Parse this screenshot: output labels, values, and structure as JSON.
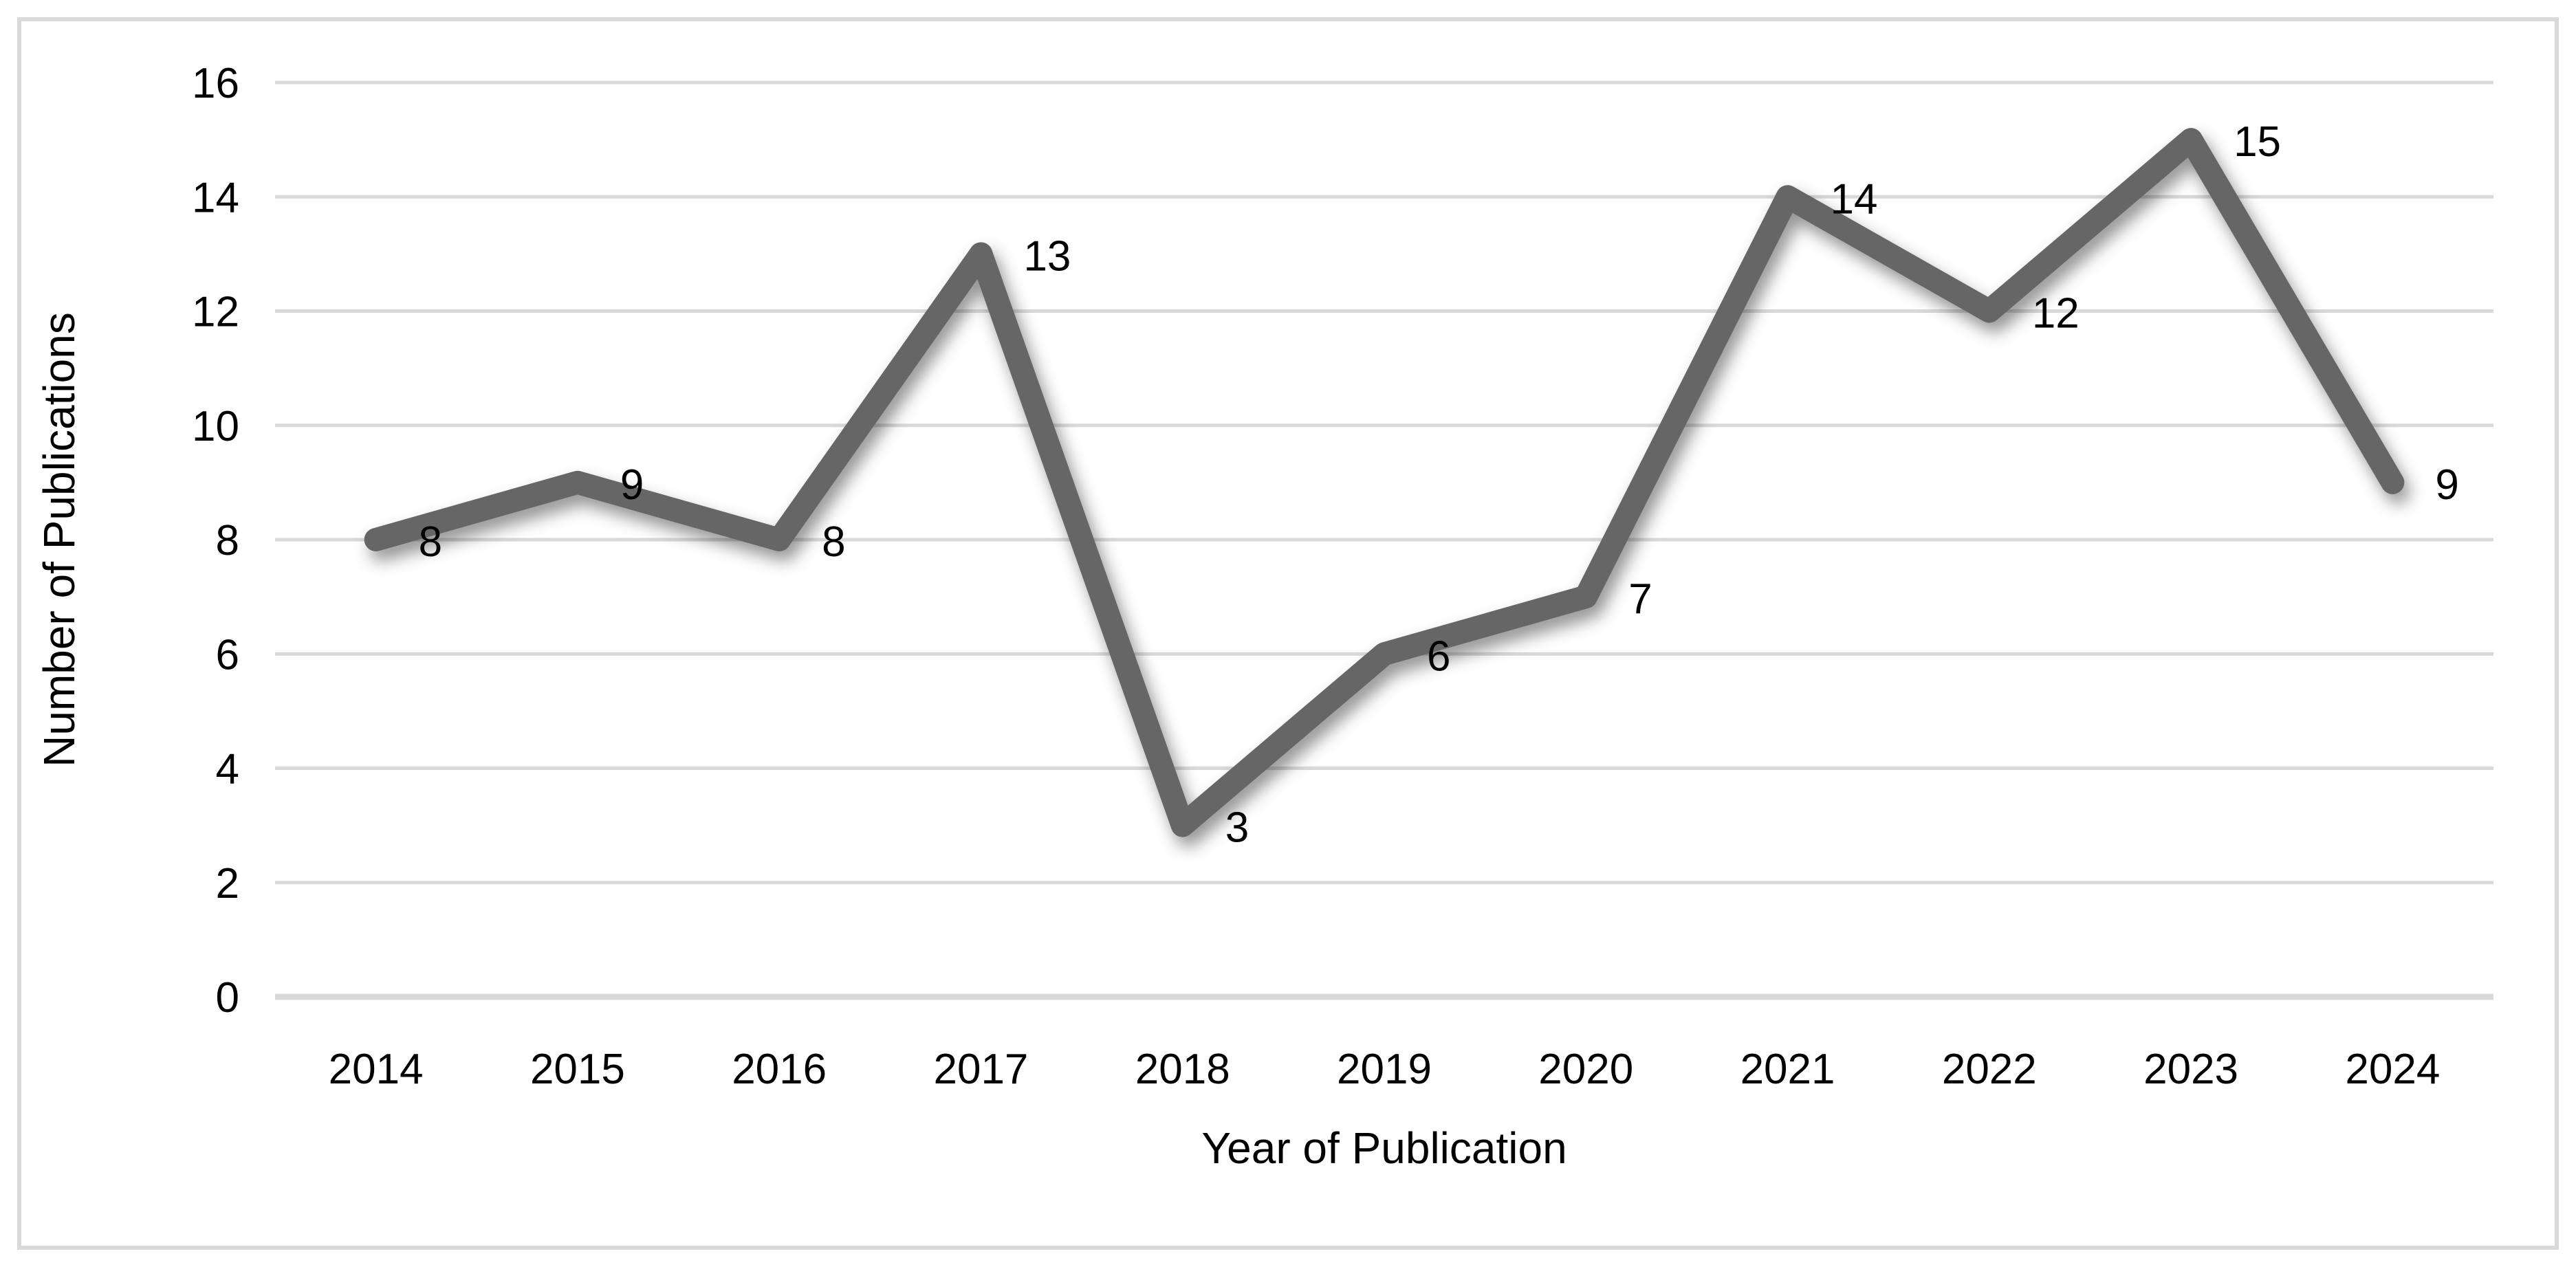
{
  "figure": {
    "background_color": "#ffffff",
    "frame_color": "#d9d9d9"
  },
  "chart_data": {
    "type": "line",
    "title": "",
    "categories": [
      "2014",
      "2015",
      "2016",
      "2017",
      "2018",
      "2019",
      "2020",
      "2021",
      "2022",
      "2023",
      "2024"
    ],
    "values": [
      8,
      9,
      8,
      13,
      3,
      6,
      7,
      14,
      12,
      15,
      9
    ],
    "data_labels": [
      "8",
      "9",
      "8",
      "13",
      "3",
      "6",
      "7",
      "14",
      "12",
      "15",
      "9"
    ],
    "xlabel": "Year of Publication",
    "ylabel": "Number of Publications",
    "ylim": [
      0,
      16
    ],
    "yticks": [
      0,
      2,
      4,
      6,
      8,
      10,
      12,
      14,
      16
    ],
    "grid": true,
    "legend": "none",
    "series_color": "#666666",
    "gridline_color": "#d9d9d9",
    "axis_line_color": "#d9d9d9",
    "tick_label_color": "#000000",
    "data_label_color": "#000000",
    "axis_title_color": "#000000"
  }
}
